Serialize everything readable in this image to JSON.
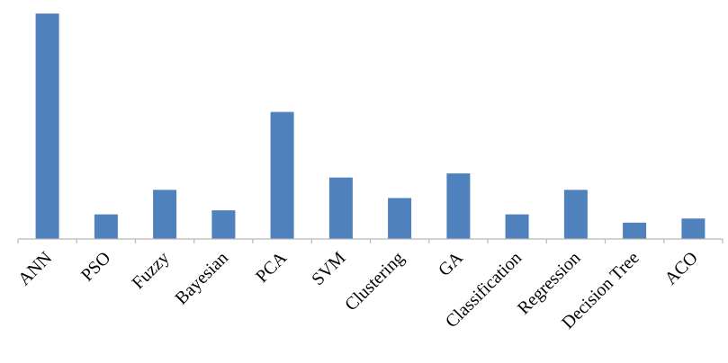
{
  "chart_data": {
    "type": "bar",
    "title": "",
    "xlabel": "",
    "ylabel": "",
    "categories": [
      "ANN",
      "PSO",
      "Fuzzy",
      "Bayesian",
      "PCA",
      "SVM",
      "Clustering",
      "GA",
      "Classification",
      "Regression",
      "Decision Tree",
      "ACO"
    ],
    "values": [
      55,
      6,
      12,
      7,
      31,
      15,
      10,
      16,
      6,
      12,
      4,
      5
    ],
    "ylim": [
      0,
      57
    ],
    "grid": false,
    "legend": "none",
    "colors": {
      "bar": "#4f81bd",
      "axis": "#b8b8b8"
    }
  }
}
